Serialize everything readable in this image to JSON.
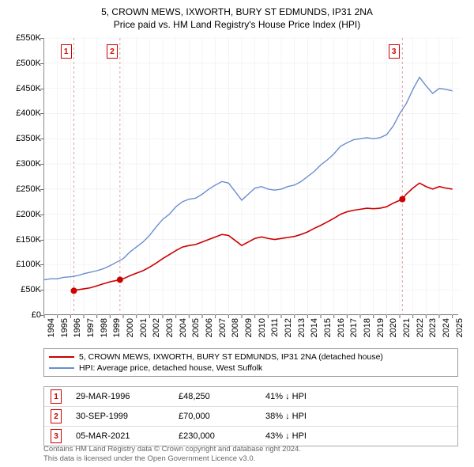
{
  "title": {
    "line1": "5, CROWN MEWS, IXWORTH, BURY ST EDMUNDS, IP31 2NA",
    "line2": "Price paid vs. HM Land Registry's House Price Index (HPI)"
  },
  "chart": {
    "type": "line",
    "background_color": "#ffffff",
    "grid_major_color": "#d0d0d0",
    "grid_minor_color": "#ececec",
    "axis_color": "#666666",
    "text_color": "#000000",
    "label_fontsize": 11,
    "x_range": [
      1994,
      2025.5
    ],
    "y_range": [
      0,
      550000
    ],
    "y_ticks": [
      0,
      50000,
      100000,
      150000,
      200000,
      250000,
      300000,
      350000,
      400000,
      450000,
      500000,
      550000
    ],
    "y_tick_labels": [
      "£0",
      "£50K",
      "£100K",
      "£150K",
      "£200K",
      "£250K",
      "£300K",
      "£350K",
      "£400K",
      "£450K",
      "£500K",
      "£550K"
    ],
    "x_ticks": [
      1994,
      1995,
      1996,
      1997,
      1998,
      1999,
      2000,
      2001,
      2002,
      2003,
      2004,
      2005,
      2006,
      2007,
      2008,
      2009,
      2010,
      2011,
      2012,
      2013,
      2014,
      2015,
      2016,
      2017,
      2018,
      2019,
      2020,
      2021,
      2022,
      2023,
      2024,
      2025
    ],
    "series": [
      {
        "name": "hpi",
        "color": "#6a8dcf",
        "width": 1.4,
        "points": [
          [
            1994.0,
            70000
          ],
          [
            1994.5,
            72000
          ],
          [
            1995.0,
            72000
          ],
          [
            1995.5,
            75000
          ],
          [
            1996.0,
            76000
          ],
          [
            1996.5,
            78000
          ],
          [
            1997.0,
            82000
          ],
          [
            1997.5,
            85000
          ],
          [
            1998.0,
            88000
          ],
          [
            1998.5,
            92000
          ],
          [
            1999.0,
            98000
          ],
          [
            1999.5,
            105000
          ],
          [
            2000.0,
            112000
          ],
          [
            2000.5,
            125000
          ],
          [
            2001.0,
            135000
          ],
          [
            2001.5,
            145000
          ],
          [
            2002.0,
            158000
          ],
          [
            2002.5,
            175000
          ],
          [
            2003.0,
            190000
          ],
          [
            2003.5,
            200000
          ],
          [
            2004.0,
            215000
          ],
          [
            2004.5,
            225000
          ],
          [
            2005.0,
            230000
          ],
          [
            2005.5,
            232000
          ],
          [
            2006.0,
            240000
          ],
          [
            2006.5,
            250000
          ],
          [
            2007.0,
            258000
          ],
          [
            2007.5,
            265000
          ],
          [
            2008.0,
            262000
          ],
          [
            2008.5,
            245000
          ],
          [
            2009.0,
            228000
          ],
          [
            2009.5,
            240000
          ],
          [
            2010.0,
            252000
          ],
          [
            2010.5,
            255000
          ],
          [
            2011.0,
            250000
          ],
          [
            2011.5,
            248000
          ],
          [
            2012.0,
            250000
          ],
          [
            2012.5,
            255000
          ],
          [
            2013.0,
            258000
          ],
          [
            2013.5,
            265000
          ],
          [
            2014.0,
            275000
          ],
          [
            2014.5,
            285000
          ],
          [
            2015.0,
            298000
          ],
          [
            2015.5,
            308000
          ],
          [
            2016.0,
            320000
          ],
          [
            2016.5,
            335000
          ],
          [
            2017.0,
            342000
          ],
          [
            2017.5,
            348000
          ],
          [
            2018.0,
            350000
          ],
          [
            2018.5,
            352000
          ],
          [
            2019.0,
            350000
          ],
          [
            2019.5,
            352000
          ],
          [
            2020.0,
            358000
          ],
          [
            2020.5,
            375000
          ],
          [
            2021.0,
            400000
          ],
          [
            2021.5,
            420000
          ],
          [
            2022.0,
            448000
          ],
          [
            2022.5,
            472000
          ],
          [
            2023.0,
            455000
          ],
          [
            2023.5,
            440000
          ],
          [
            2024.0,
            450000
          ],
          [
            2024.5,
            448000
          ],
          [
            2025.0,
            445000
          ]
        ]
      },
      {
        "name": "property",
        "color": "#cc0000",
        "width": 1.6,
        "points": [
          [
            1996.25,
            48250
          ],
          [
            1996.5,
            50000
          ],
          [
            1997.0,
            52000
          ],
          [
            1997.5,
            54000
          ],
          [
            1998.0,
            58000
          ],
          [
            1998.5,
            62000
          ],
          [
            1999.0,
            66000
          ],
          [
            1999.75,
            70000
          ],
          [
            2000.0,
            72000
          ],
          [
            2000.5,
            78000
          ],
          [
            2001.0,
            83000
          ],
          [
            2001.5,
            88000
          ],
          [
            2002.0,
            95000
          ],
          [
            2002.5,
            103000
          ],
          [
            2003.0,
            112000
          ],
          [
            2003.5,
            120000
          ],
          [
            2004.0,
            128000
          ],
          [
            2004.5,
            135000
          ],
          [
            2005.0,
            138000
          ],
          [
            2005.5,
            140000
          ],
          [
            2006.0,
            145000
          ],
          [
            2006.5,
            150000
          ],
          [
            2007.0,
            155000
          ],
          [
            2007.5,
            160000
          ],
          [
            2008.0,
            158000
          ],
          [
            2008.5,
            148000
          ],
          [
            2009.0,
            138000
          ],
          [
            2009.5,
            145000
          ],
          [
            2010.0,
            152000
          ],
          [
            2010.5,
            155000
          ],
          [
            2011.0,
            152000
          ],
          [
            2011.5,
            150000
          ],
          [
            2012.0,
            152000
          ],
          [
            2012.5,
            154000
          ],
          [
            2013.0,
            156000
          ],
          [
            2013.5,
            160000
          ],
          [
            2014.0,
            165000
          ],
          [
            2014.5,
            172000
          ],
          [
            2015.0,
            178000
          ],
          [
            2015.5,
            185000
          ],
          [
            2016.0,
            192000
          ],
          [
            2016.5,
            200000
          ],
          [
            2017.0,
            205000
          ],
          [
            2017.5,
            208000
          ],
          [
            2018.0,
            210000
          ],
          [
            2018.5,
            212000
          ],
          [
            2019.0,
            211000
          ],
          [
            2019.5,
            212000
          ],
          [
            2020.0,
            215000
          ],
          [
            2020.5,
            222000
          ],
          [
            2021.2,
            230000
          ],
          [
            2021.5,
            240000
          ],
          [
            2022.0,
            252000
          ],
          [
            2022.5,
            262000
          ],
          [
            2023.0,
            255000
          ],
          [
            2023.5,
            250000
          ],
          [
            2024.0,
            255000
          ],
          [
            2024.5,
            252000
          ],
          [
            2025.0,
            250000
          ]
        ]
      }
    ],
    "sale_markers": [
      {
        "n": "1",
        "x": 1996.25,
        "y": 48250,
        "box_x": 1995.3
      },
      {
        "n": "2",
        "x": 1999.75,
        "y": 70000,
        "box_x": 1998.8
      },
      {
        "n": "3",
        "x": 2021.2,
        "y": 230000,
        "box_x": 2020.2
      }
    ],
    "vline_color": "#e0a0a0",
    "vline_dash": "3,3",
    "dot_radius": 4
  },
  "legend": {
    "items": [
      {
        "color": "#cc0000",
        "label": "5, CROWN MEWS, IXWORTH, BURY ST EDMUNDS, IP31 2NA (detached house)"
      },
      {
        "color": "#6a8dcf",
        "label": "HPI: Average price, detached house, West Suffolk"
      }
    ]
  },
  "sales": [
    {
      "n": "1",
      "date": "29-MAR-1996",
      "price": "£48,250",
      "diff": "41% ↓ HPI"
    },
    {
      "n": "2",
      "date": "30-SEP-1999",
      "price": "£70,000",
      "diff": "38% ↓ HPI"
    },
    {
      "n": "3",
      "date": "05-MAR-2021",
      "price": "£230,000",
      "diff": "43% ↓ HPI"
    }
  ],
  "footer": {
    "line1": "Contains HM Land Registry data © Crown copyright and database right 2024.",
    "line2": "This data is licensed under the Open Government Licence v3.0."
  }
}
